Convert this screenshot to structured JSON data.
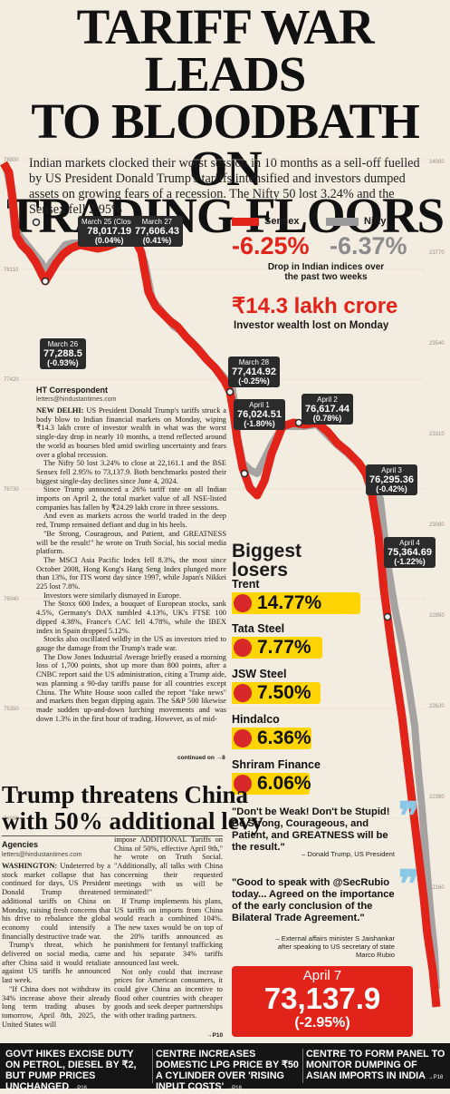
{
  "headline": {
    "line1": "TARIFF WAR LEADS",
    "line2": "TO BLOODBATH ON",
    "line3": "TRADING FLOORS"
  },
  "intro": "Indian markets clocked their worst session in 10 months as a sell-off fuelled by US President Donald Trump's tariffs intensified and investors dumped assets on growing fears of a recession. The Nifty 50 lost 3.24% and the Sensex fell 2.95%",
  "chart_data": {
    "type": "line",
    "title": "",
    "series": [
      {
        "name": "Sensex",
        "color": "#e2231a"
      },
      {
        "name": "Nifty",
        "color": "#9b9b9b"
      }
    ],
    "left_axis_ticks": [
      "78800",
      "78110",
      "77420",
      "76730",
      "76040",
      "75350",
      "74660"
    ],
    "right_axis_ticks": [
      "24000",
      "23770",
      "23540",
      "23310",
      "23080",
      "22850",
      "22620",
      "22390",
      "22160"
    ],
    "annotations": [
      {
        "date": "March 25 (Close)",
        "value": "78,017.19",
        "change": "(0.04%)"
      },
      {
        "date": "March 27",
        "value": "77,606.43",
        "change": "(0.41%)"
      },
      {
        "date": "March 26",
        "value": "77,288.5",
        "change": "(-0.93%)"
      },
      {
        "date": "March 28",
        "value": "77,414.92",
        "change": "(-0.25%)"
      },
      {
        "date": "April 1",
        "value": "76,024.51",
        "change": "(-1.80%)"
      },
      {
        "date": "April 2",
        "value": "76,617.44",
        "change": "(0.78%)"
      },
      {
        "date": "April 3",
        "value": "76,295.36",
        "change": "(-0.42%)"
      },
      {
        "date": "April 4",
        "value": "75,364.69",
        "change": "(-1.22%)"
      }
    ],
    "final": {
      "date": "April 7",
      "value": "73,137.9",
      "change": "(-2.95%)"
    }
  },
  "legend": {
    "sensex_label": "Sensex",
    "nifty_label": "Nifty",
    "sensex_pct": "-6.25%",
    "nifty_pct": "-6.37%",
    "pct_caption_1": "Drop in Indian indices over",
    "pct_caption_2": "the past two weeks"
  },
  "wealth": {
    "amount": "₹14.3 lakh crore",
    "caption": "Investor wealth lost on Monday"
  },
  "article": {
    "byline": "HT Correspondent",
    "email": "letters@hindustantimes.com",
    "dateline": "NEW DELHI:",
    "p1": " US President Donald Trump's tariffs struck a body blow to Indian financial markets on Monday, wiping ₹14.3 lakh crore of investor wealth in what was the worst single-day drop in nearly 10 months, a trend reflected around the world as bourses bled amid swirling uncertainty and fears over a global recession.",
    "p2": "The Nifty 50 lost 3.24% to close at 22,161.1 and the BSE Sensex fell 2.95% to 73,137.9. Both benchmarks posted their biggest single-day declines since June 4, 2024.",
    "p3": "Since Trump announced a 26% tariff rate on all Indian imports on April 2, the total market value of all NSE-listed companies has fallen by ₹24.29 lakh crore in three sessions.",
    "p4": "And even as markets across the world traded in the deep red, Trump remained defiant and dug in his heels.",
    "p5": "\"Be Strong, Courageous, and Patient, and GREATNESS will be the result!\" he wrote on Truth Social, his social media platform.",
    "p6": "The MSCI Asia Pacific Index fell 8.3%, the most since October 2008, Hong Kong's Hang Seng Index plunged more than 13%, for ITS worst day since 1997, while Japan's Nikkei 225 lost 7.8%.",
    "p7": "Investors were similarly dismayed in Europe.",
    "p8": "The Stoxx 600 Index, a bouquet of European stocks, sank 4.5%, Germany's DAX tumbled 4.13%, UK's FTSE 100 dipped 4.38%, France's CAC fell 4.78%, while the IBEX index in Spain dropped 5.12%.",
    "p9": "Stocks also oscillated wildly in the US as investors tried to gauge the damage from the Trump's trade war.",
    "p10": "The Dow Jones Industrial Average briefly erased a morning loss of 1,700 points, shot up more than 800 points, after a CNBC report said the US administration, citing a Trump aide, was planning a 90-day tariffs pause for all countries except China. The White House soon called the report \"fake news\" and markets then began dipping again. The S&P 500 likewise made sudden up-and-down lurching movements and was down 1.3% in the first hour of trading. However, as of mid-",
    "continued": "continued on →8"
  },
  "losers": {
    "title_1": "Biggest",
    "title_2": "losers",
    "items": [
      {
        "name": "Trent",
        "pct": "14.77%"
      },
      {
        "name": "Tata Steel",
        "pct": "7.77%"
      },
      {
        "name": "JSW Steel",
        "pct": "7.50%"
      },
      {
        "name": "Hindalco",
        "pct": "6.36%"
      },
      {
        "name": "Shriram Finance",
        "pct": "6.06%"
      }
    ]
  },
  "quotes": {
    "trump": "\"Don't be Weak! Don't be Stupid! Be Strong, Courageous, and Patient, and GREATNESS will be the result.\"",
    "trump_attr": "– Donald Trump, US President",
    "jaishankar": "\"Good to speak with @SecRubio today... Agreed on the importance of the early conclusion of the Bilateral Trade Agreement.\"",
    "jaishankar_attr_1": "– External affairs minister S Jaishankar",
    "jaishankar_attr_2": "after speaking to US secretary of state",
    "jaishankar_attr_3": "Marco Rubio"
  },
  "china_story": {
    "headline_1": "Trump threatens China",
    "headline_2": "with 50% additional levy",
    "byline": "Agencies",
    "email": "letters@hindustantimes.com",
    "dateline": "WASHINGTON:",
    "c1": " Undeterred by a stock market collapse that has continued for days, US President Donald Trump threatened additional tariffs on China on Monday, raising fresh concerns that his drive to rebalance the global economy could intensify a financially destructive trade war.",
    "c2": "Trump's threat, which he delivered on social media, came after China said it would retaliate against US tariffs he announced last week.",
    "c3": "\"If China does not withdraw its 34% increase above their already long term trading abuses by tomorrow, April 8th, 2025, the United States will",
    "c4": "impose ADDITIONAL Tariffs on China of 50%, effective April 9th,\" he wrote on Truth Social. \"Additionally, all talks with China concerning their requested meetings with us will be terminated!\"",
    "c5": "If Trump implements his plans, US tariffs on imports from China would reach a combined 104%. The new taxes would be on top of the 20% tariffs announced as punishment for fentanyl trafficking and his separate 34% tariffs announced last week.",
    "c6": "Not only could that increase prices for American consumers, it could give China an incentive to flood other countries with cheaper goods and seek deeper partnerships with other trading partners.",
    "c_end": "→P10"
  },
  "final_box": {
    "date": "April 7",
    "value": "73,137.9",
    "change": "(-2.95%)"
  },
  "bottom": [
    {
      "text": "GOVT HIKES EXCISE DUTY ON PETROL, DIESEL BY ₹2, BUT PUMP PRICES UNCHANGED",
      "ref": "→P18"
    },
    {
      "text": "CENTRE INCREASES DOMESTIC LPG PRICE BY ₹50 A CYLINDER OVER 'RISING INPUT COSTS'",
      "ref": "→P18"
    },
    {
      "text": "CENTRE TO FORM PANEL TO MONITOR DUMPING OF ASIAN IMPORTS IN INDIA",
      "ref": "→P18"
    }
  ]
}
